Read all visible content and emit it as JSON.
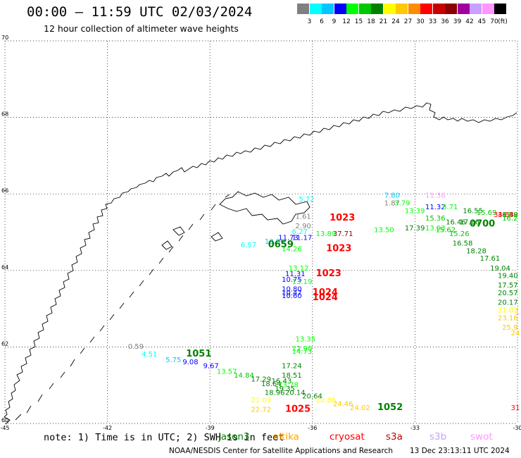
{
  "header": {
    "title": "00:00 – 11:59 UTC 02/03/2024",
    "subtitle": "12 hour collection of altimeter wave heights"
  },
  "colorbar": {
    "labels": [
      "3",
      "6",
      "9",
      "12",
      "15",
      "18",
      "21",
      "24",
      "27",
      "30",
      "33",
      "36",
      "39",
      "42",
      "45",
      "70"
    ],
    "unit": "(ft)",
    "colors": [
      "#808080",
      "#00ffff",
      "#00c8ff",
      "#0000ff",
      "#00ff00",
      "#00c800",
      "#008200",
      "#ffff00",
      "#ffc800",
      "#ff8c00",
      "#ff0000",
      "#c80000",
      "#8c0000",
      "#a000a0",
      "#c8a0ff",
      "#ff96ff",
      "#000000"
    ]
  },
  "map": {
    "lon_labels": [
      "-45",
      "-42",
      "-39",
      "-36",
      "-33",
      "-30"
    ],
    "lat_labels": [
      "70",
      "68",
      "66",
      "64",
      "62",
      "60"
    ],
    "lon_range": [
      -45,
      -30
    ],
    "lat_range": [
      60,
      70
    ],
    "grid": "dotted"
  },
  "observations": [
    {
      "t": "7.80",
      "lon": -33.9,
      "lat": 65.9,
      "c": "#00c8ff"
    },
    {
      "t": "11.38",
      "lon": -32.7,
      "lat": 65.9,
      "c": "#ff96ff"
    },
    {
      "t": "1.87",
      "lon": -33.9,
      "lat": 65.7,
      "c": "#808080"
    },
    {
      "t": "3.79",
      "lon": -33.6,
      "lat": 65.7,
      "c": "#00ff00"
    },
    {
      "t": "11.32",
      "lon": -32.7,
      "lat": 65.6,
      "c": "#0000ff"
    },
    {
      "t": "3.71",
      "lon": -32.2,
      "lat": 65.6,
      "c": "#00ff00"
    },
    {
      "t": "13.39",
      "lon": -33.3,
      "lat": 65.5,
      "c": "#00ff00"
    },
    {
      "t": "16.55",
      "lon": -31.6,
      "lat": 65.5,
      "c": "#008200"
    },
    {
      "t": "15.69",
      "lon": -31.2,
      "lat": 65.45,
      "c": "#00c800"
    },
    {
      "t": "34.68",
      "lon": -30.7,
      "lat": 65.4,
      "c": "#ff0000"
    },
    {
      "t": "36.49",
      "lon": -30.3,
      "lat": 65.4,
      "c": "#c80000"
    },
    {
      "t": "5.72",
      "lon": -36.4,
      "lat": 65.8,
      "c": "#00ffff"
    },
    {
      "t": "1.61",
      "lon": -36.5,
      "lat": 65.35,
      "c": "#808080"
    },
    {
      "t": "15.36",
      "lon": -32.7,
      "lat": 65.3,
      "c": "#00c800"
    },
    {
      "t": "16.46",
      "lon": -32.1,
      "lat": 65.2,
      "c": "#008200"
    },
    {
      "t": "17.16",
      "lon": -31.7,
      "lat": 65.2,
      "c": "#008200"
    },
    {
      "t": "2.90",
      "lon": -36.5,
      "lat": 65.1,
      "c": "#808080"
    },
    {
      "t": "17.39",
      "lon": -33.3,
      "lat": 65.05,
      "c": "#008200"
    },
    {
      "t": "13.93",
      "lon": -32.7,
      "lat": 65.05,
      "c": "#00ff00"
    },
    {
      "t": "15.62",
      "lon": -32.4,
      "lat": 65.0,
      "c": "#00c800"
    },
    {
      "t": "6.27",
      "lon": -36.6,
      "lat": 64.95,
      "c": "#00ffff"
    },
    {
      "t": "13.50",
      "lon": -34.2,
      "lat": 65.0,
      "c": "#00ff00"
    },
    {
      "t": "37.71",
      "lon": -35.4,
      "lat": 64.9,
      "c": "#8c0000"
    },
    {
      "t": "13.89",
      "lon": -35.9,
      "lat": 64.9,
      "c": "#00ff00"
    },
    {
      "t": "15.26",
      "lon": -32.0,
      "lat": 64.9,
      "c": "#00c800"
    },
    {
      "t": "11.73",
      "lon": -37.0,
      "lat": 64.8,
      "c": "#0000ff"
    },
    {
      "t": "11.17",
      "lon": -36.6,
      "lat": 64.8,
      "c": "#0000ff"
    },
    {
      "t": "10.86",
      "lon": -37.4,
      "lat": 64.7,
      "c": "#00c8ff"
    },
    {
      "t": "6.57",
      "lon": -38.1,
      "lat": 64.6,
      "c": "#00ffff"
    },
    {
      "t": "16.58",
      "lon": -31.9,
      "lat": 64.65,
      "c": "#008200"
    },
    {
      "t": "14.26",
      "lon": -36.9,
      "lat": 64.5,
      "c": "#00ff00"
    },
    {
      "t": "18.28",
      "lon": -31.5,
      "lat": 64.45,
      "c": "#008200"
    },
    {
      "t": "17.61",
      "lon": -31.1,
      "lat": 64.25,
      "c": "#008200"
    },
    {
      "t": "19.04",
      "lon": -30.8,
      "lat": 64.0,
      "c": "#008200"
    },
    {
      "t": "13.12",
      "lon": -36.7,
      "lat": 64.0,
      "c": "#00ff00"
    },
    {
      "t": "11.31",
      "lon": -36.8,
      "lat": 63.85,
      "c": "#0000ff"
    },
    {
      "t": "19.40",
      "lon": -30.4,
      "lat": 63.8,
      "c": "#008200"
    },
    {
      "t": "10.75",
      "lon": -36.9,
      "lat": 63.7,
      "c": "#0000ff"
    },
    {
      "t": "13.19",
      "lon": -36.6,
      "lat": 63.65,
      "c": "#00ff00"
    },
    {
      "t": "17.57",
      "lon": -30.1,
      "lat": 63.55,
      "c": "#008200"
    },
    {
      "t": "10.80",
      "lon": -36.9,
      "lat": 63.45,
      "c": "#0000ff"
    },
    {
      "t": "20.57",
      "lon": -29.8,
      "lat": 63.35,
      "c": "#008200"
    },
    {
      "t": "10.47",
      "lon": -36.9,
      "lat": 63.35,
      "c": "#0000ff"
    },
    {
      "t": "10.60",
      "lon": -36.9,
      "lat": 63.28,
      "c": "#0000ff"
    },
    {
      "t": "20.17",
      "lon": -29.5,
      "lat": 63.1,
      "c": "#008200"
    },
    {
      "t": "21.02",
      "lon": -29.2,
      "lat": 62.9,
      "c": "#ffff00"
    },
    {
      "t": "23.16",
      "lon": -29.0,
      "lat": 62.7,
      "c": "#ffc800"
    },
    {
      "t": "25.9",
      "lon": -28.7,
      "lat": 62.45,
      "c": "#ffc800"
    },
    {
      "t": "24",
      "lon": -28.4,
      "lat": 62.3,
      "c": "#ffc800"
    },
    {
      "t": "13.35",
      "lon": -36.5,
      "lat": 62.15,
      "c": "#00ff00"
    },
    {
      "t": "0.59",
      "lon": -41.4,
      "lat": 61.95,
      "c": "#808080"
    },
    {
      "t": "12.90",
      "lon": -36.6,
      "lat": 61.9,
      "c": "#00ff00"
    },
    {
      "t": "14.73",
      "lon": -36.6,
      "lat": 61.82,
      "c": "#00ff00"
    },
    {
      "t": "4.51",
      "lon": -41.0,
      "lat": 61.75,
      "c": "#00ffff"
    },
    {
      "t": "5.75",
      "lon": -40.3,
      "lat": 61.6,
      "c": "#00c8ff"
    },
    {
      "t": "9.08",
      "lon": -39.8,
      "lat": 61.55,
      "c": "#0000ff"
    },
    {
      "t": "9.67",
      "lon": -39.2,
      "lat": 61.45,
      "c": "#0000ff"
    },
    {
      "t": "17.24",
      "lon": -36.9,
      "lat": 61.45,
      "c": "#008200"
    },
    {
      "t": "13.57",
      "lon": -38.8,
      "lat": 61.3,
      "c": "#00ff00"
    },
    {
      "t": "14.84",
      "lon": -38.3,
      "lat": 61.2,
      "c": "#00c800"
    },
    {
      "t": "18.51",
      "lon": -36.9,
      "lat": 61.2,
      "c": "#008200"
    },
    {
      "t": "17.29",
      "lon": -37.8,
      "lat": 61.1,
      "c": "#008200"
    },
    {
      "t": "16.43",
      "lon": -37.2,
      "lat": 61.05,
      "c": "#008200"
    },
    {
      "t": "18.64",
      "lon": -37.5,
      "lat": 60.98,
      "c": "#008200"
    },
    {
      "t": "13.78",
      "lon": -37.0,
      "lat": 60.95,
      "c": "#00ff00"
    },
    {
      "t": "19.35",
      "lon": -37.1,
      "lat": 60.85,
      "c": "#008200"
    },
    {
      "t": "18.96",
      "lon": -37.4,
      "lat": 60.75,
      "c": "#008200"
    },
    {
      "t": "20.14",
      "lon": -36.8,
      "lat": 60.75,
      "c": "#008200"
    },
    {
      "t": "20.64",
      "lon": -36.3,
      "lat": 60.65,
      "c": "#008200"
    },
    {
      "t": "21.09",
      "lon": -37.8,
      "lat": 60.55,
      "c": "#ffff00"
    },
    {
      "t": "20.86",
      "lon": -35.9,
      "lat": 60.55,
      "c": "#ffff00"
    },
    {
      "t": "24.46",
      "lon": -35.4,
      "lat": 60.45,
      "c": "#ffc800"
    },
    {
      "t": "24.02",
      "lon": -34.9,
      "lat": 60.35,
      "c": "#ffc800"
    },
    {
      "t": "22.72",
      "lon": -37.8,
      "lat": 60.3,
      "c": "#ffc800"
    },
    {
      "t": "31",
      "lon": -30.0,
      "lat": 60.35,
      "c": "#ff0000"
    },
    {
      "t": "15.8",
      "lon": -29.7,
      "lat": 65.4,
      "c": "#00c800"
    },
    {
      "t": "16.2",
      "lon": -29.6,
      "lat": 65.3,
      "c": "#00c800"
    },
    {
      "t": "1",
      "lon": -30.05,
      "lat": 62.85,
      "c": "#ff96ff"
    }
  ],
  "passes": [
    {
      "t": "1023",
      "lon": -35.5,
      "lat": 65.3,
      "c": "#ff0000"
    },
    {
      "t": "0700",
      "lon": -31.4,
      "lat": 65.15,
      "c": "#008200"
    },
    {
      "t": "0659",
      "lon": -37.3,
      "lat": 64.6,
      "c": "#008200"
    },
    {
      "t": "1023",
      "lon": -35.6,
      "lat": 64.5,
      "c": "#ff0000"
    },
    {
      "t": "1023",
      "lon": -35.9,
      "lat": 63.85,
      "c": "#ff0000"
    },
    {
      "t": "1024",
      "lon": -36.0,
      "lat": 63.35,
      "c": "#ff0000"
    },
    {
      "t": "1024",
      "lon": -36.0,
      "lat": 63.22,
      "c": "#ff0000"
    },
    {
      "t": "1051",
      "lon": -39.7,
      "lat": 61.75,
      "c": "#008200"
    },
    {
      "t": "1025",
      "lon": -36.8,
      "lat": 60.3,
      "c": "#ff0000"
    },
    {
      "t": "1052",
      "lon": -34.1,
      "lat": 60.35,
      "c": "#008200"
    }
  ],
  "footer": {
    "note": "note: 1) Time is in UTC; 2) SWH is in feet",
    "legend": [
      {
        "label": "jason3",
        "color": "#008200"
      },
      {
        "label": "altika",
        "color": "#ffa500"
      },
      {
        "label": "cryosat",
        "color": "#ff0000"
      },
      {
        "label": "s3a",
        "color": "#c80000"
      },
      {
        "label": "s3b",
        "color": "#c8a0ff"
      },
      {
        "label": "swot",
        "color": "#ff96ff"
      }
    ],
    "credit": "NOAA/NESDIS Center for Satellite Applications and Research",
    "stamp": "13 Dec 23:13:11 UTC 2024"
  }
}
